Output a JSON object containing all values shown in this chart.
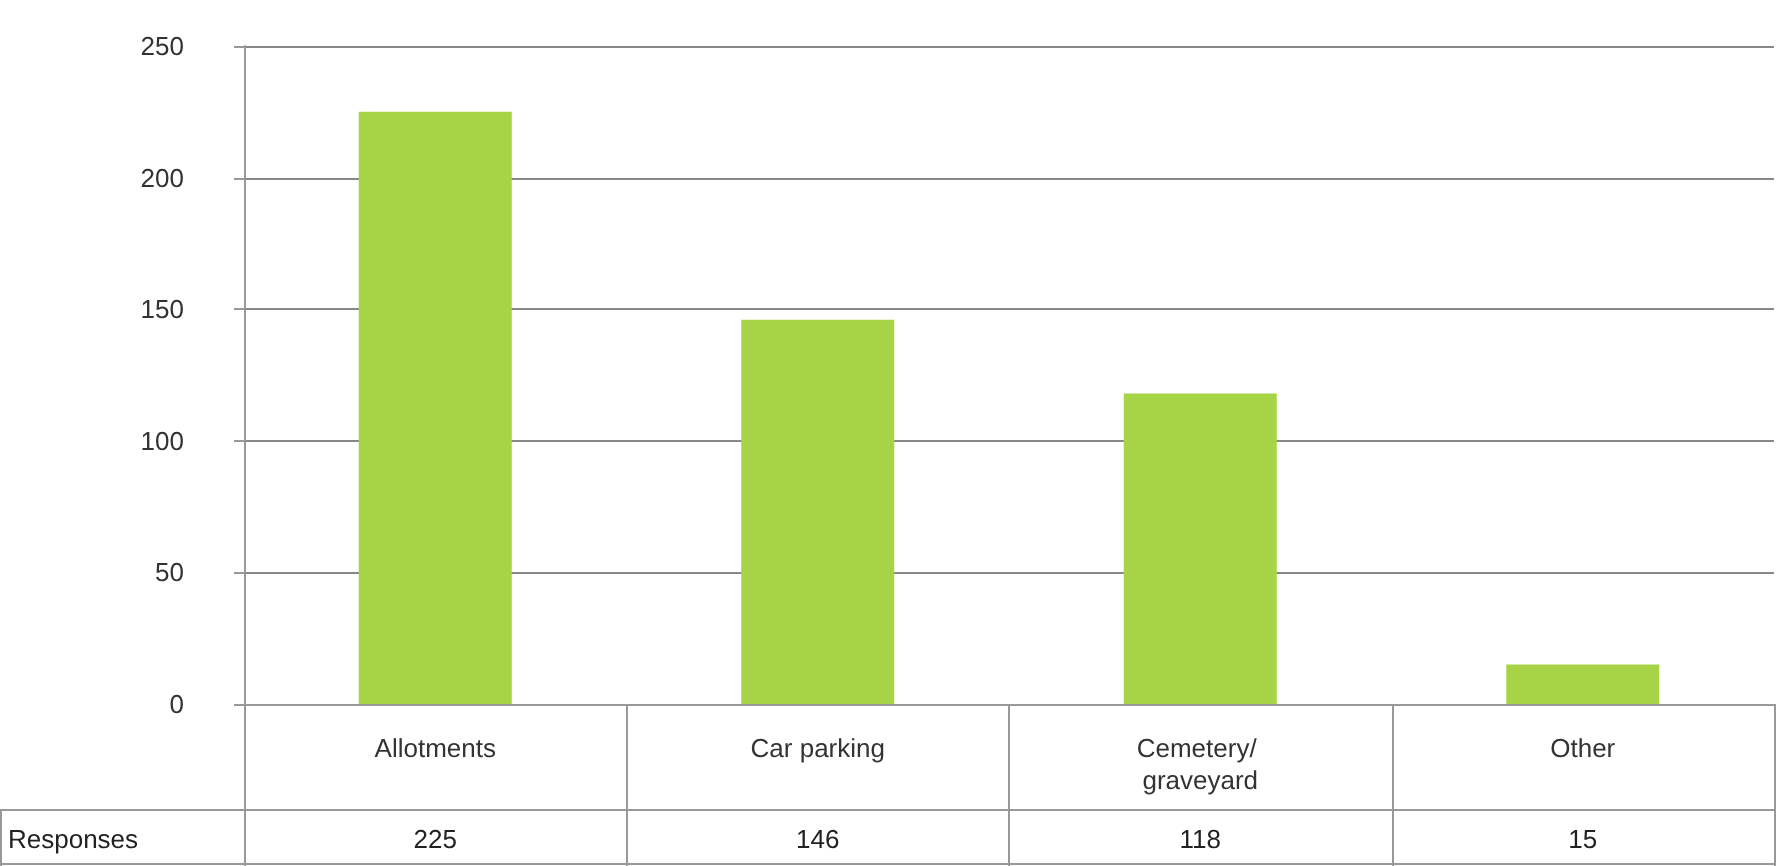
{
  "chart_data": {
    "type": "bar",
    "categories": [
      "Allotments",
      "Car parking",
      "Cemetery/ graveyard",
      "Other"
    ],
    "series": [
      {
        "name": "Responses",
        "color": "#a6d446",
        "values": [
          225,
          146,
          118,
          15
        ]
      }
    ],
    "data_labels": true,
    "ylim": [
      0,
      250
    ],
    "yticks": [
      0,
      50,
      100,
      150,
      200,
      250
    ],
    "grid": "y",
    "legend": false
  }
}
